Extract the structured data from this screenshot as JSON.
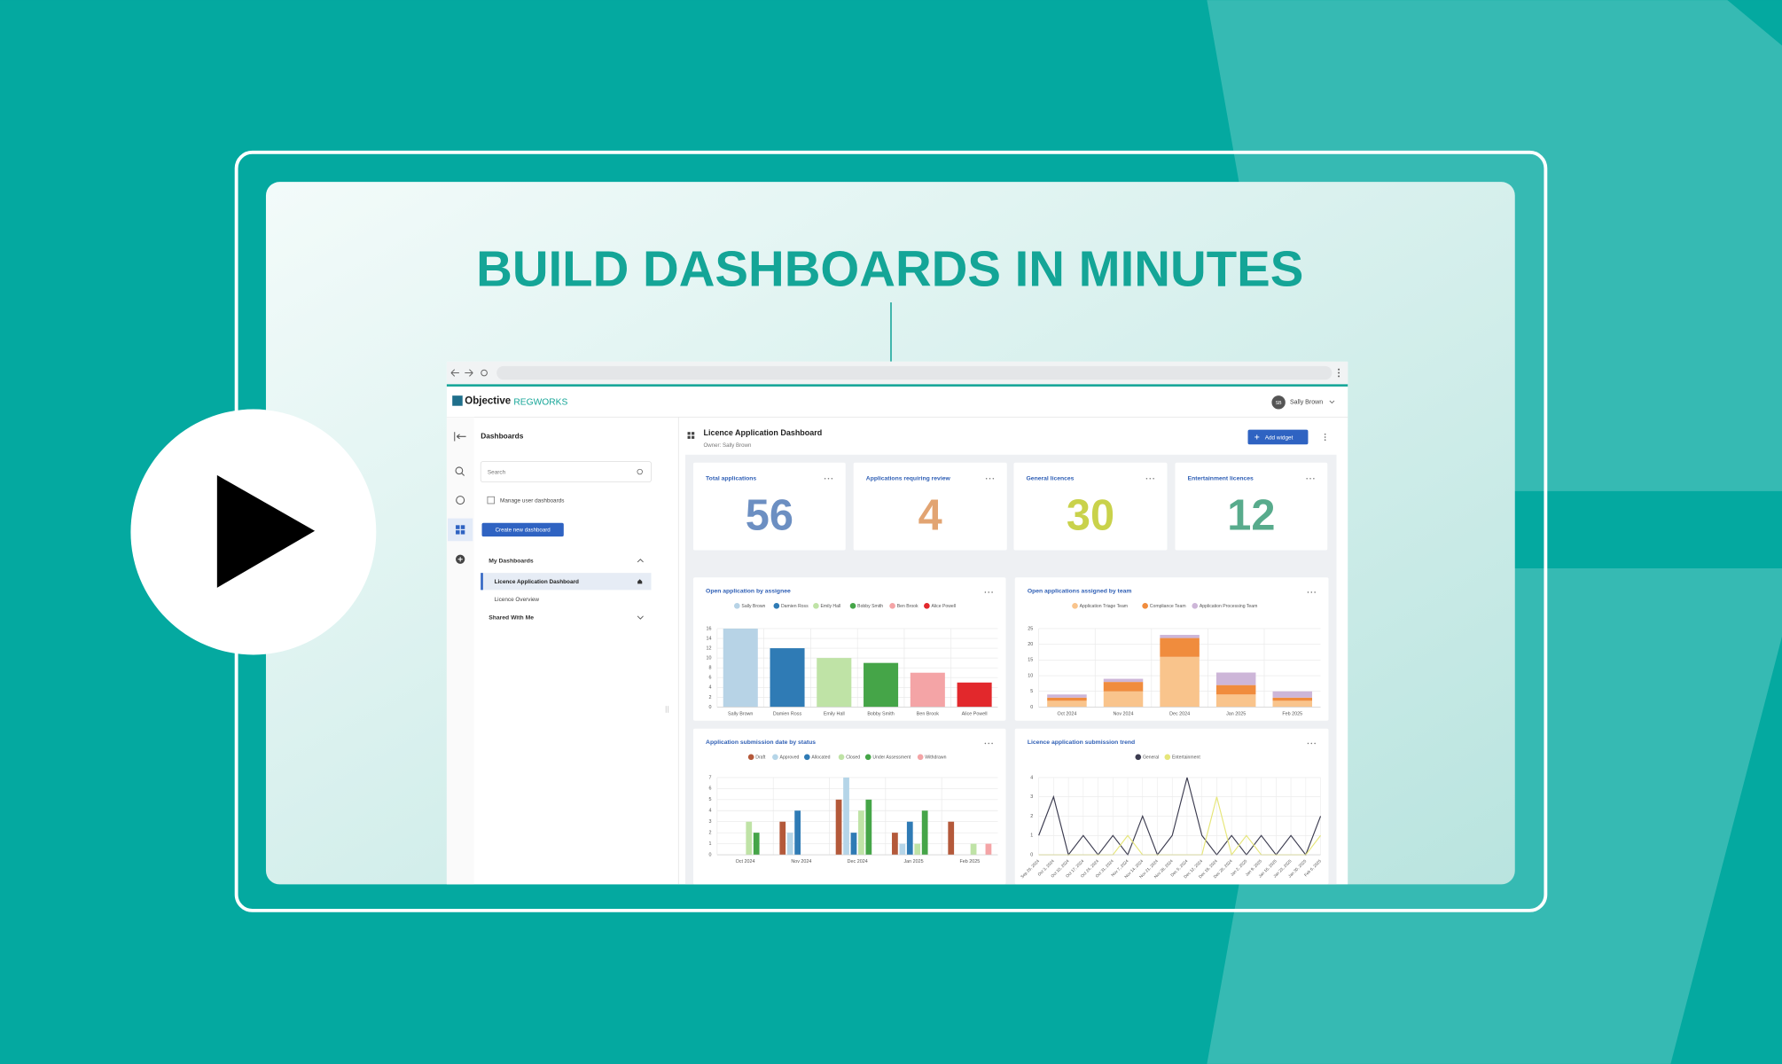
{
  "headline": "BUILD DASHBOARDS IN MINUTES",
  "app": {
    "brand": "Objective",
    "brand_product": "REGWORKS",
    "user_initials": "SB",
    "user_name": "Sally Brown"
  },
  "sidebar": {
    "title": "Dashboards",
    "search_placeholder": "Search",
    "manage_label": "Manage user dashboards",
    "create_button": "Create new dashboard",
    "my_dashboards": "My Dashboards",
    "items": [
      "Licence Application Dashboard",
      "Licence Overview"
    ],
    "shared": "Shared With Me"
  },
  "dashboard": {
    "title": "Licence Application Dashboard",
    "owner": "Owner: Sally Brown",
    "add_widget": "Add widget"
  },
  "kpis": [
    {
      "label": "Total applications",
      "value": 56,
      "color": "#6c8fc2"
    },
    {
      "label": "Applications requiring review",
      "value": 4,
      "color": "#e2a472"
    },
    {
      "label": "General licences",
      "value": 30,
      "color": "#c9d24b"
    },
    {
      "label": "Entertainment licences",
      "value": 12,
      "color": "#58ab8c"
    }
  ],
  "chart_data": [
    {
      "type": "bar",
      "title": "Open application by assignee",
      "categories": [
        "Sally Brown",
        "Damien Ross",
        "Emily Hall",
        "Bobby Smith",
        "Ben Brook",
        "Alice Powell"
      ],
      "values": [
        16,
        12,
        10,
        9,
        7,
        5
      ],
      "colors": [
        "#b7d3e6",
        "#2f7bb5",
        "#bfe3a6",
        "#45a548",
        "#f4a4a6",
        "#e2282c"
      ],
      "ylim": [
        0,
        16
      ],
      "yticks": [
        0,
        2,
        4,
        6,
        8,
        10,
        12,
        14,
        16
      ],
      "grid": true
    },
    {
      "type": "bar",
      "stacked": true,
      "title": "Open applications assigned by team",
      "categories": [
        "Oct 2024",
        "Nov 2024",
        "Dec 2024",
        "Jan 2025",
        "Feb 2025"
      ],
      "series": [
        {
          "name": "Application Triage Team",
          "color": "#f9c48c",
          "values": [
            2,
            5,
            16,
            4,
            2
          ]
        },
        {
          "name": "Compliance Team",
          "color": "#f08c3d",
          "values": [
            1,
            3,
            6,
            3,
            1
          ]
        },
        {
          "name": "Application Processing Team",
          "color": "#cdb6d8",
          "values": [
            1,
            1,
            1,
            4,
            2
          ]
        }
      ],
      "ylim": [
        0,
        25
      ],
      "yticks": [
        0,
        5,
        10,
        15,
        20,
        25
      ],
      "grid": true
    },
    {
      "type": "bar",
      "title": "Application submission date by status",
      "categories": [
        "Oct 2024",
        "Nov 2024",
        "Dec 2024",
        "Jan 2025",
        "Feb 2025"
      ],
      "series": [
        {
          "name": "Draft",
          "color": "#b4593a",
          "values": [
            0,
            3,
            5,
            2,
            3
          ]
        },
        {
          "name": "Approved",
          "color": "#b5d5e8",
          "values": [
            0,
            2,
            7,
            1,
            0
          ]
        },
        {
          "name": "Allocated",
          "color": "#2f7bb5",
          "values": [
            0,
            4,
            2,
            3,
            0
          ]
        },
        {
          "name": "Closed",
          "color": "#bfe3a6",
          "values": [
            3,
            0,
            4,
            1,
            1
          ]
        },
        {
          "name": "Under Assessment",
          "color": "#45a548",
          "values": [
            2,
            0,
            5,
            4,
            0
          ]
        },
        {
          "name": "Withdrawn",
          "color": "#f4a4a6",
          "values": [
            0,
            0,
            0,
            0,
            1
          ]
        }
      ],
      "ylim": [
        0,
        7
      ],
      "yticks": [
        0,
        1,
        2,
        3,
        4,
        5,
        6,
        7
      ],
      "grid": true
    },
    {
      "type": "line",
      "title": "Licence application submission trend",
      "categories": [
        "Sep 26, 2024",
        "Oct 3, 2024",
        "Oct 10, 2024",
        "Oct 17, 2024",
        "Oct 24, 2024",
        "Oct 31, 2024",
        "Nov 7, 2024",
        "Nov 14, 2024",
        "Nov 21, 2024",
        "Nov 28, 2024",
        "Dec 5, 2024",
        "Dec 12, 2024",
        "Dec 19, 2024",
        "Dec 26, 2024",
        "Jan 2, 2025",
        "Jan 9, 2025",
        "Jan 16, 2025",
        "Jan 23, 2025",
        "Jan 30, 2025",
        "Feb 6, 2025"
      ],
      "series": [
        {
          "name": "General",
          "color": "#3b3b4f",
          "values": [
            1,
            3,
            0,
            1,
            0,
            1,
            0,
            2,
            0,
            1,
            4,
            1,
            0,
            1,
            0,
            1,
            0,
            1,
            0,
            2
          ]
        },
        {
          "name": "Entertainment",
          "color": "#e6e67a",
          "values": [
            0,
            0,
            0,
            0,
            0,
            0,
            1,
            0,
            0,
            0,
            0,
            0,
            3,
            0,
            1,
            0,
            0,
            0,
            0,
            1
          ]
        }
      ],
      "ylim": [
        0,
        4
      ],
      "yticks": [
        0,
        1,
        2,
        3,
        4
      ],
      "grid": true
    }
  ]
}
